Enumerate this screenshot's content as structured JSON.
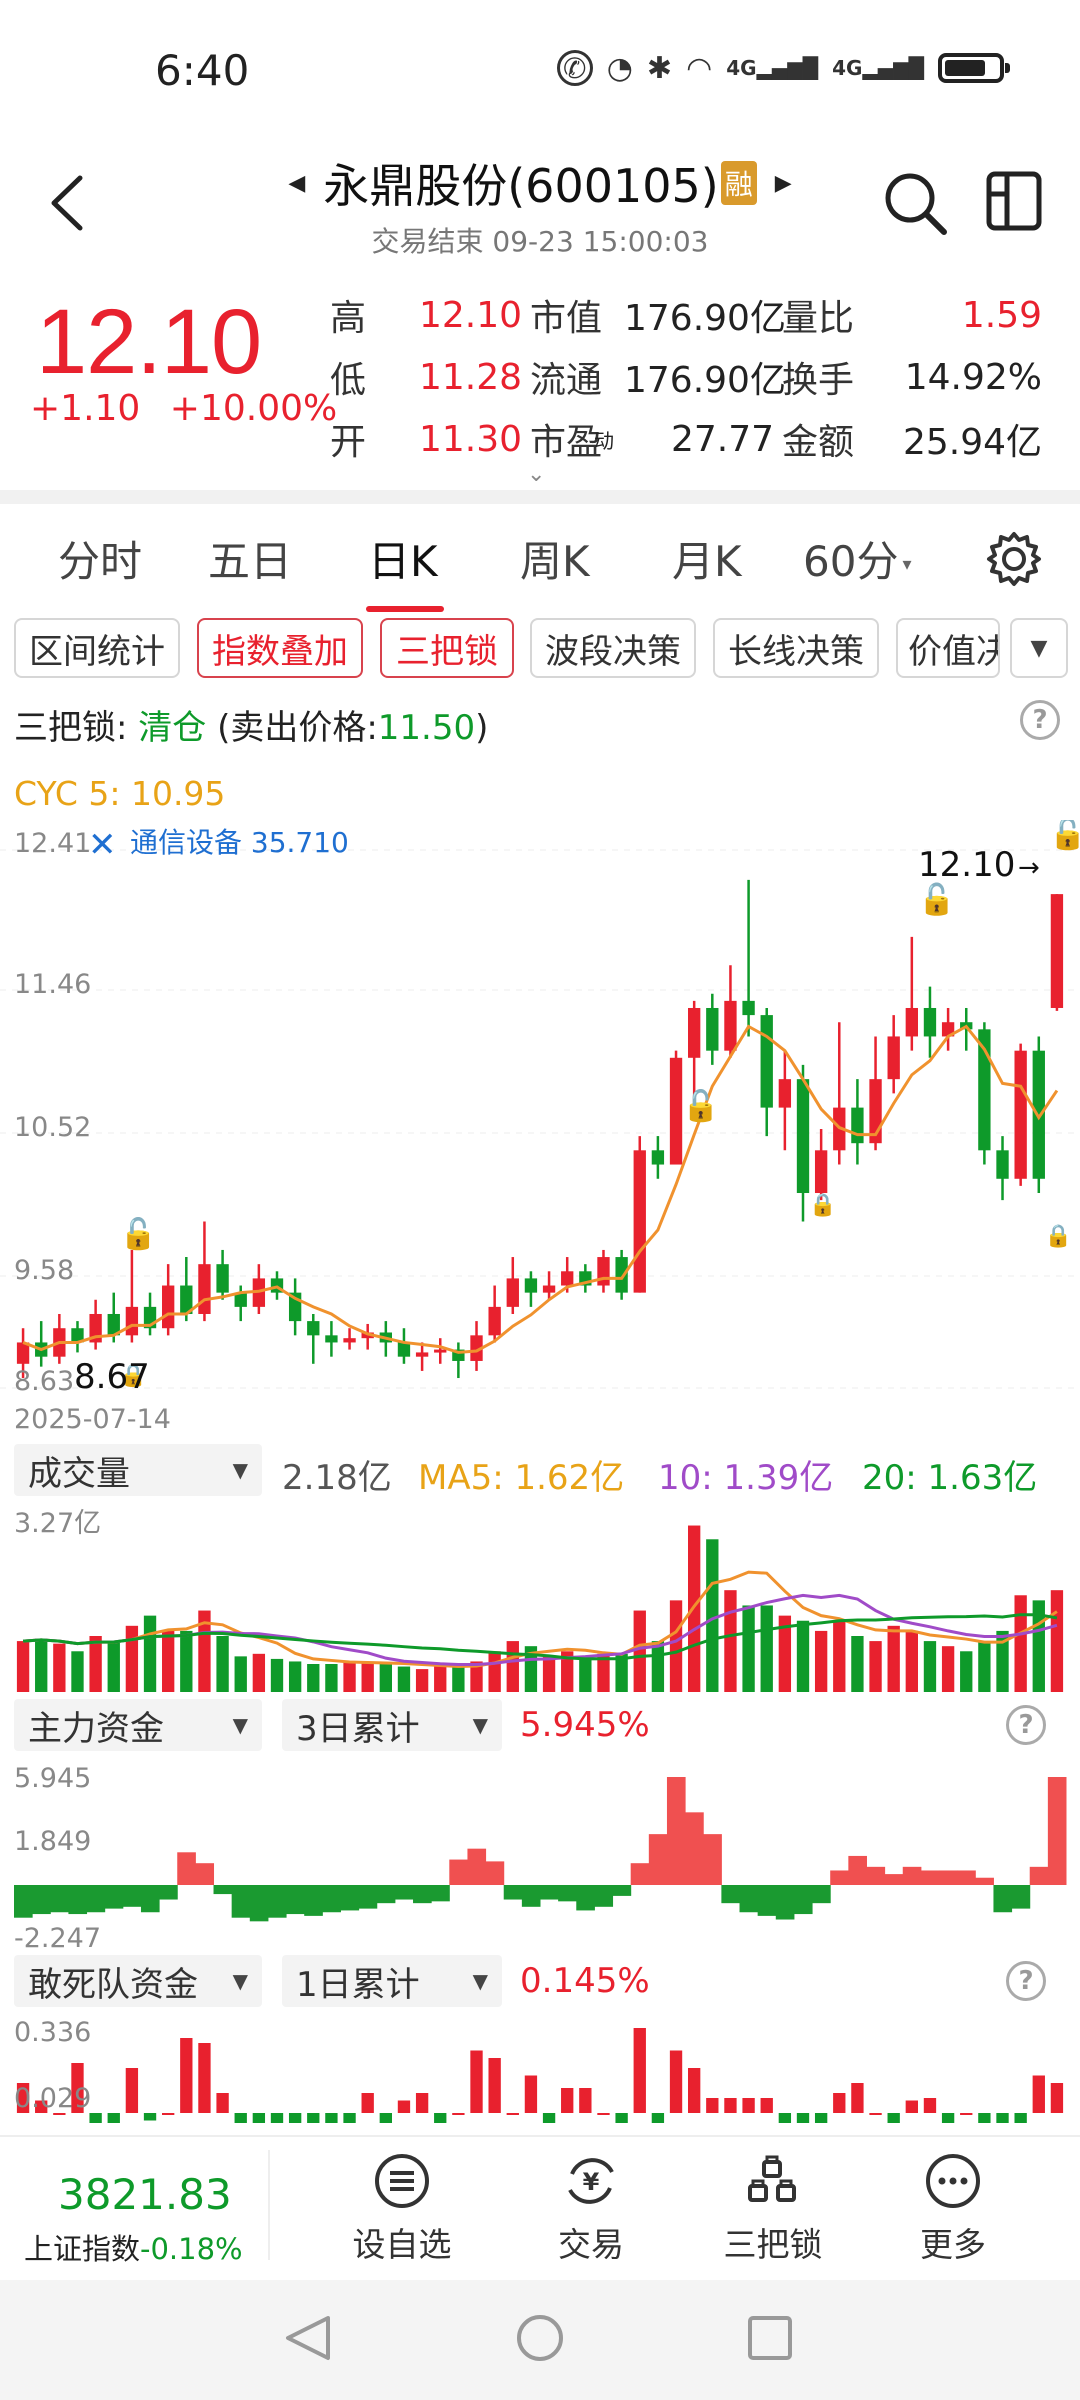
{
  "status_bar": {
    "time": "6:40",
    "net_1": "4G",
    "net_2": "4G"
  },
  "header": {
    "title": "永鼎股份(600105)",
    "badge": "融",
    "trade_status": "交易结束 09-23 15:00:03"
  },
  "quote": {
    "price": "12.10",
    "change": "+1.10",
    "change_pct": "+10.00%",
    "rows": [
      [
        {
          "label": "高",
          "value": "12.10",
          "color": "red"
        },
        {
          "label": "市值",
          "value": "176.90亿"
        },
        {
          "label": "量比",
          "value": "1.59",
          "color": "red"
        }
      ],
      [
        {
          "label": "低",
          "value": "11.28",
          "color": "red"
        },
        {
          "label": "流通",
          "value": "176.90亿"
        },
        {
          "label": "换手",
          "value": "14.92%"
        }
      ],
      [
        {
          "label": "开",
          "value": "11.30",
          "color": "red"
        },
        {
          "label": "市盈",
          "sup": "动",
          "value": "27.77"
        },
        {
          "label": "金额",
          "value": "25.94亿"
        }
      ]
    ]
  },
  "period_tabs": {
    "items": [
      "分时",
      "五日",
      "日K",
      "周K",
      "月K",
      "60分"
    ],
    "active": 2
  },
  "indicator_chips": [
    "区间统计",
    "指数叠加",
    "三把锁",
    "波段决策",
    "长线决策",
    "价值决"
  ],
  "lock_status": {
    "prefix": "三把锁: ",
    "state": "清仓",
    "detail_prefix": " (卖出价格:",
    "sell_price": "11.50",
    "detail_suffix": ")"
  },
  "cyc": {
    "text": "CYC 5: 10.95"
  },
  "kline": {
    "y_ticks": [
      "12.41",
      "11.46",
      "10.52",
      "9.58",
      "8.63"
    ],
    "overlay_label": "通信设备 35.710",
    "low_label": "8.67",
    "high_label": "12.10",
    "start_date": "2025-07-14"
  },
  "volume": {
    "selector": "成交量",
    "value": "2.18亿",
    "ma5": "MA5: 1.62亿",
    "ma10": "10: 1.39亿",
    "ma20": "20: 1.63亿",
    "y_max": "3.27亿"
  },
  "main_funds": {
    "selector": "主力资金",
    "period": "3日累计",
    "value": "5.945%",
    "y_ticks": [
      "5.945",
      "1.849",
      "-2.247"
    ]
  },
  "daredevil_funds": {
    "selector": "敢死队资金",
    "period": "1日累计",
    "value": "0.145%",
    "y_ticks": [
      "0.336",
      "0.029"
    ]
  },
  "bottom_bar": {
    "index_value": "3821.83",
    "index_name": "上证指数",
    "index_change": "-0.18%",
    "nav": [
      "设自选",
      "交易",
      "三把锁",
      "更多"
    ]
  },
  "colors": {
    "up": "#e8212e",
    "down": "#0e9a2a",
    "accent": "#e8a317",
    "overlay": "#1f6fd1"
  }
}
